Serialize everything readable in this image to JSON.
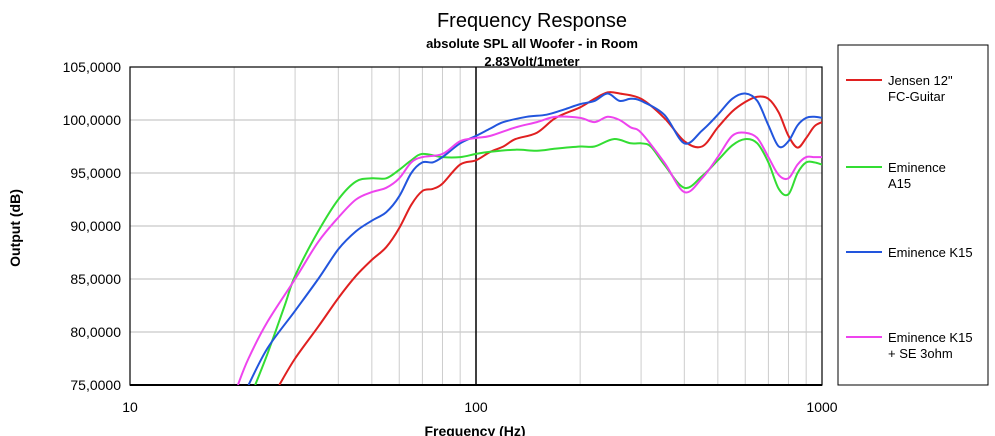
{
  "chart_data": {
    "type": "line",
    "title": "Frequency Response",
    "subtitle": [
      "absolute SPL all Woofer - in Room",
      "2.83Volt/1meter"
    ],
    "xlabel": "Frequency (Hz)",
    "ylabel": "Output (dB)",
    "x_scale": "log",
    "xlim": [
      10,
      1000
    ],
    "ylim": [
      75,
      105
    ],
    "x_ticks": [
      10,
      100,
      1000
    ],
    "x_tick_labels": [
      "10",
      "100",
      "1000"
    ],
    "y_ticks": [
      75,
      80,
      85,
      90,
      95,
      100,
      105
    ],
    "y_tick_labels": [
      "75,0000",
      "80,0000",
      "85,0000",
      "90,0000",
      "95,0000",
      "100,0000",
      "105,0000"
    ],
    "grid": true,
    "legend_position": "right",
    "series": [
      {
        "name": "Jensen 12\" FC-Guitar",
        "label_lines": [
          "Jensen 12\"",
          "FC-Guitar"
        ],
        "color": "#e02020",
        "x": [
          27,
          30,
          35,
          40,
          45,
          50,
          55,
          60,
          65,
          70,
          75,
          80,
          90,
          100,
          110,
          120,
          130,
          150,
          170,
          200,
          220,
          240,
          260,
          300,
          350,
          400,
          450,
          500,
          550,
          600,
          650,
          700,
          750,
          800,
          850,
          900,
          950,
          1000
        ],
        "y": [
          75.0,
          77.5,
          80.5,
          83.2,
          85.3,
          86.8,
          88.0,
          89.8,
          92.0,
          93.3,
          93.5,
          94.0,
          95.8,
          96.2,
          97.0,
          97.5,
          98.2,
          98.8,
          100.2,
          101.2,
          102.0,
          102.6,
          102.5,
          102.0,
          100.2,
          98.0,
          97.5,
          99.3,
          100.8,
          101.7,
          102.2,
          102.0,
          100.7,
          98.5,
          97.4,
          98.3,
          99.4,
          99.8
        ]
      },
      {
        "name": "Eminence A15",
        "label_lines": [
          "Eminence",
          "A15"
        ],
        "color": "#33dd33",
        "x": [
          23,
          25,
          28,
          30,
          35,
          40,
          45,
          50,
          55,
          60,
          65,
          70,
          80,
          90,
          100,
          110,
          130,
          150,
          170,
          200,
          220,
          250,
          280,
          300,
          320,
          350,
          400,
          450,
          500,
          550,
          600,
          650,
          700,
          750,
          800,
          850,
          900,
          950,
          1000
        ],
        "y": [
          75.0,
          78.0,
          82.5,
          85.3,
          89.5,
          92.5,
          94.2,
          94.5,
          94.5,
          95.3,
          96.2,
          96.8,
          96.5,
          96.5,
          96.8,
          97.0,
          97.2,
          97.1,
          97.3,
          97.5,
          97.5,
          98.2,
          97.8,
          97.8,
          97.5,
          95.8,
          93.6,
          94.7,
          96.2,
          97.6,
          98.2,
          97.8,
          96.0,
          93.5,
          93.0,
          95.0,
          96.0,
          96.0,
          95.8
        ]
      },
      {
        "name": "Eminence K15",
        "label_lines": [
          "Eminence K15"
        ],
        "color": "#2255dd",
        "x": [
          22,
          25,
          30,
          35,
          40,
          45,
          50,
          55,
          60,
          65,
          70,
          75,
          80,
          90,
          100,
          110,
          120,
          140,
          160,
          180,
          200,
          220,
          240,
          260,
          280,
          300,
          350,
          400,
          450,
          500,
          550,
          600,
          650,
          700,
          750,
          800,
          850,
          900,
          950,
          1000
        ],
        "y": [
          75.0,
          78.5,
          82.0,
          85.0,
          87.8,
          89.5,
          90.5,
          91.3,
          92.8,
          95.0,
          96.0,
          96.0,
          96.5,
          97.8,
          98.5,
          99.2,
          99.8,
          100.3,
          100.5,
          101.0,
          101.5,
          101.8,
          102.5,
          101.8,
          102.0,
          101.8,
          100.5,
          97.8,
          99.0,
          100.5,
          102.0,
          102.5,
          101.8,
          99.5,
          97.5,
          98.0,
          99.5,
          100.2,
          100.3,
          100.2
        ]
      },
      {
        "name": "Eminence K15 + SE 3ohm",
        "label_lines": [
          "Eminence K15",
          "+ SE 3ohm"
        ],
        "color": "#ee44ee",
        "x": [
          20.5,
          22,
          25,
          30,
          35,
          40,
          45,
          50,
          55,
          60,
          65,
          70,
          80,
          90,
          100,
          110,
          130,
          150,
          170,
          200,
          220,
          240,
          260,
          280,
          300,
          350,
          400,
          450,
          500,
          550,
          600,
          650,
          700,
          750,
          800,
          850,
          900,
          950,
          1000
        ],
        "y": [
          75.0,
          77.5,
          81.0,
          85.0,
          88.5,
          90.8,
          92.5,
          93.2,
          93.6,
          94.5,
          96.0,
          96.5,
          96.8,
          98.0,
          98.3,
          98.5,
          99.3,
          99.8,
          100.3,
          100.2,
          99.8,
          100.3,
          100.0,
          99.3,
          98.8,
          96.0,
          93.2,
          94.5,
          96.5,
          98.5,
          98.8,
          98.3,
          96.5,
          94.8,
          94.5,
          95.8,
          96.5,
          96.5,
          96.5
        ]
      }
    ]
  }
}
